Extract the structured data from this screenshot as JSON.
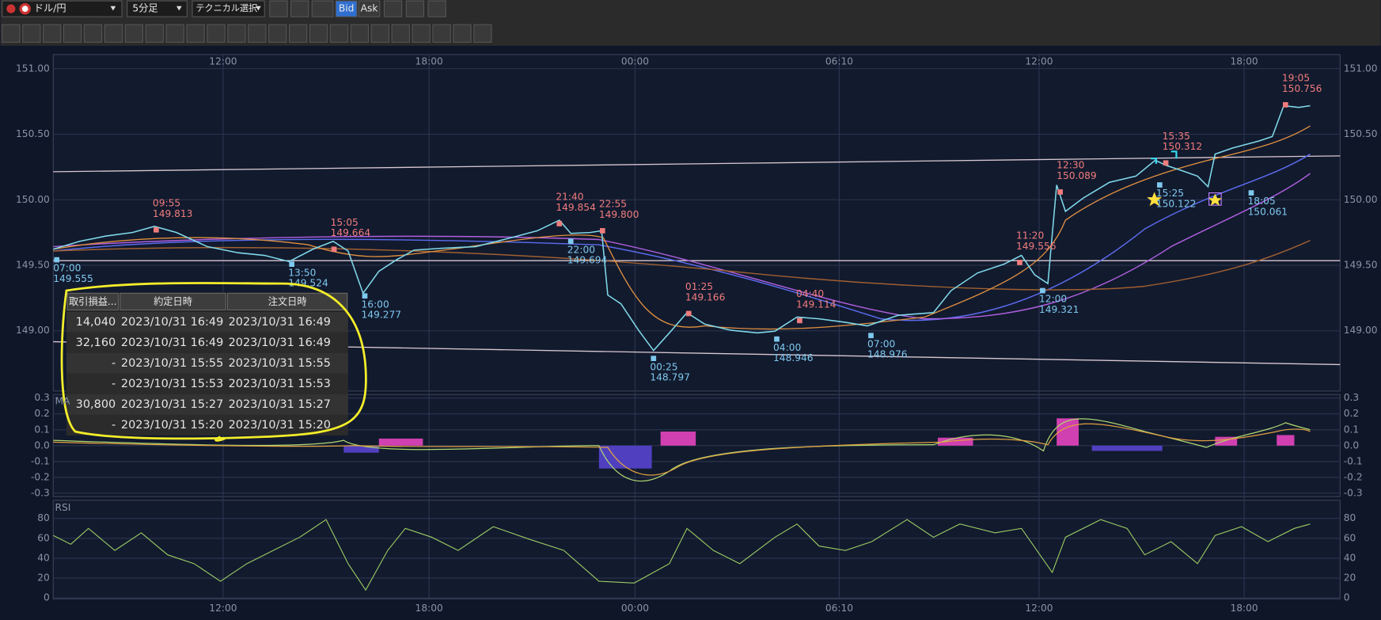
{
  "toolbar": {
    "pair": "ドル/円",
    "timeframe": "5分足",
    "technical": "テクニカル選択",
    "bid": "Bid",
    "ask": "Ask"
  },
  "price_axis": {
    "ticks": [
      {
        "value": 151,
        "label": "151.00"
      },
      {
        "value": 150.5,
        "label": "150.50"
      },
      {
        "value": 150,
        "label": "150.00"
      },
      {
        "value": 149.5,
        "label": "149.50"
      },
      {
        "value": 149,
        "label": "149.00"
      }
    ]
  },
  "time_axis": {
    "labels": [
      "12:00",
      "18:00",
      "00:00",
      "06:10",
      "12:00",
      "18:00"
    ]
  },
  "annotations": [
    {
      "time": "09:55",
      "price": "149.813",
      "kind": "high"
    },
    {
      "time": "07:00",
      "price": "149.555",
      "kind": "low"
    },
    {
      "time": "15:05",
      "price": "149.664",
      "kind": "high"
    },
    {
      "time": "13:50",
      "price": "149.524",
      "kind": "low"
    },
    {
      "time": "16:00",
      "price": "149.277",
      "kind": "low"
    },
    {
      "time": "21:40",
      "price": "149.854",
      "kind": "high"
    },
    {
      "time": "22:55",
      "price": "149.800",
      "kind": "high"
    },
    {
      "time": "22:00",
      "price": "149.694",
      "kind": "low"
    },
    {
      "time": "01:25",
      "price": "149.166",
      "kind": "high"
    },
    {
      "time": "00:25",
      "price": "148.797",
      "kind": "low"
    },
    {
      "time": "04:40",
      "price": "149.114",
      "kind": "high"
    },
    {
      "time": "04:00",
      "price": "148.946",
      "kind": "low"
    },
    {
      "time": "07:00",
      "price": "148.976",
      "kind": "low"
    },
    {
      "time": "11:20",
      "price": "149.556",
      "kind": "high"
    },
    {
      "time": "12:00",
      "price": "149.321",
      "kind": "low"
    },
    {
      "time": "12:30",
      "price": "150.089",
      "kind": "high"
    },
    {
      "time": "15:35",
      "price": "150.312",
      "kind": "high"
    },
    {
      "time": "15:25",
      "price": "150.122",
      "kind": "low"
    },
    {
      "time": "18:05",
      "price": "150.061",
      "kind": "low"
    },
    {
      "time": "19:05",
      "price": "150.756",
      "kind": "high"
    }
  ],
  "macd": {
    "label": "MA",
    "ticks": [
      {
        "value": 0.3,
        "label": "0.3"
      },
      {
        "value": 0.2,
        "label": "0.2"
      },
      {
        "value": 0.1,
        "label": "0.1"
      },
      {
        "value": 0,
        "label": "0.0"
      },
      {
        "value": -0.1,
        "label": "-0.1"
      },
      {
        "value": -0.2,
        "label": "-0.2"
      },
      {
        "value": -0.3,
        "label": "-0.3"
      }
    ]
  },
  "rsi": {
    "label": "RSI",
    "ticks": [
      80,
      60,
      40,
      20,
      0
    ]
  },
  "table": {
    "headers": [
      "取引損益...",
      "約定日時",
      "注文日時"
    ],
    "rows": [
      [
        "14,040",
        "2023/10/31 16:49",
        "2023/10/31 16:49"
      ],
      [
        "32,160",
        "2023/10/31 16:49",
        "2023/10/31 16:49"
      ],
      [
        "-",
        "2023/10/31 15:55",
        "2023/10/31 15:55"
      ],
      [
        "-",
        "2023/10/31 15:53",
        "2023/10/31 15:53"
      ],
      [
        "30,800",
        "2023/10/31 15:27",
        "2023/10/31 15:27"
      ],
      [
        "-",
        "2023/10/31 15:20",
        "2023/10/31 15:20"
      ]
    ]
  }
}
